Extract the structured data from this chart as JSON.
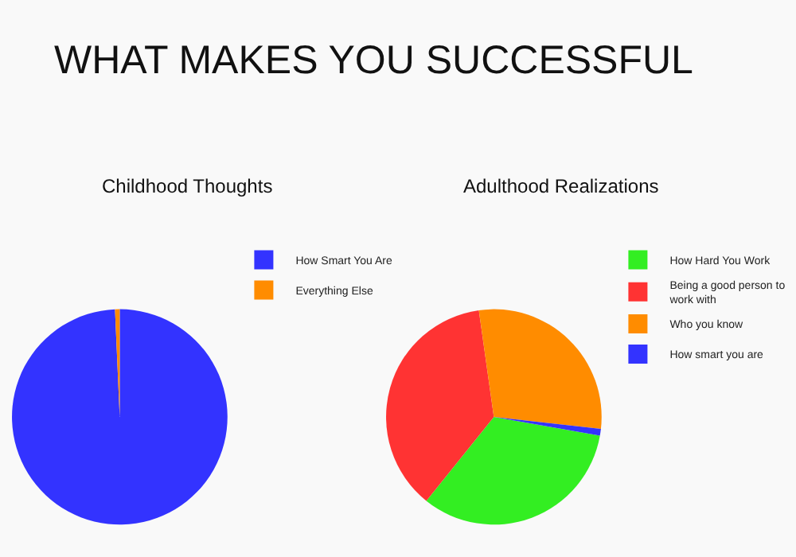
{
  "chart_data": [
    {
      "type": "other",
      "title": "WHAT MAKES YOU SUCCESSFUL"
    },
    {
      "type": "pie",
      "title": "Childhood Thoughts",
      "categories": [
        "How Smart You Are",
        "Everything Else"
      ],
      "values": [
        99.3,
        0.7
      ],
      "colors": [
        "#3333ff",
        "#ff8c00"
      ],
      "legend": "right"
    },
    {
      "type": "pie",
      "title": "Adulthood Realizations",
      "categories": [
        "How Hard You Work",
        "Being a good person to work with",
        "Who you know",
        "How smart you are"
      ],
      "values": [
        33,
        37,
        29,
        1
      ],
      "colors": [
        "#33ee22",
        "#ff3333",
        "#ff8c00",
        "#3333ff"
      ],
      "legend": "right"
    }
  ]
}
